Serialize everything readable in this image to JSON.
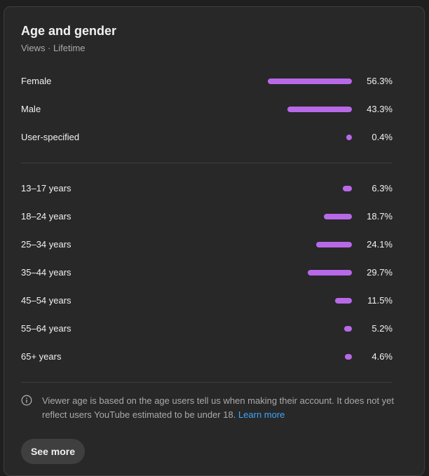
{
  "card": {
    "title": "Age and gender",
    "subtitle": "Views · Lifetime"
  },
  "gender": [
    {
      "label": "Female",
      "value": "56.3%",
      "pct": 56.3
    },
    {
      "label": "Male",
      "value": "43.3%",
      "pct": 43.3
    },
    {
      "label": "User-specified",
      "value": "0.4%",
      "pct": 0.4
    }
  ],
  "age": [
    {
      "label": "13–17 years",
      "value": "6.3%",
      "pct": 6.3
    },
    {
      "label": "18–24 years",
      "value": "18.7%",
      "pct": 18.7
    },
    {
      "label": "25–34 years",
      "value": "24.1%",
      "pct": 24.1
    },
    {
      "label": "35–44 years",
      "value": "29.7%",
      "pct": 29.7
    },
    {
      "label": "45–54 years",
      "value": "11.5%",
      "pct": 11.5
    },
    {
      "label": "55–64 years",
      "value": "5.2%",
      "pct": 5.2
    },
    {
      "label": "65+ years",
      "value": "4.6%",
      "pct": 4.6
    }
  ],
  "note": {
    "text": "Viewer age is based on the age users tell us when making their account. It does not yet reflect users YouTube estimated to be under 18.",
    "link": "Learn more",
    "icon": "info-icon"
  },
  "see_more_label": "See more",
  "colors": {
    "bar": "#b869e8",
    "link": "#3ea6ff",
    "background": "#282828"
  }
}
